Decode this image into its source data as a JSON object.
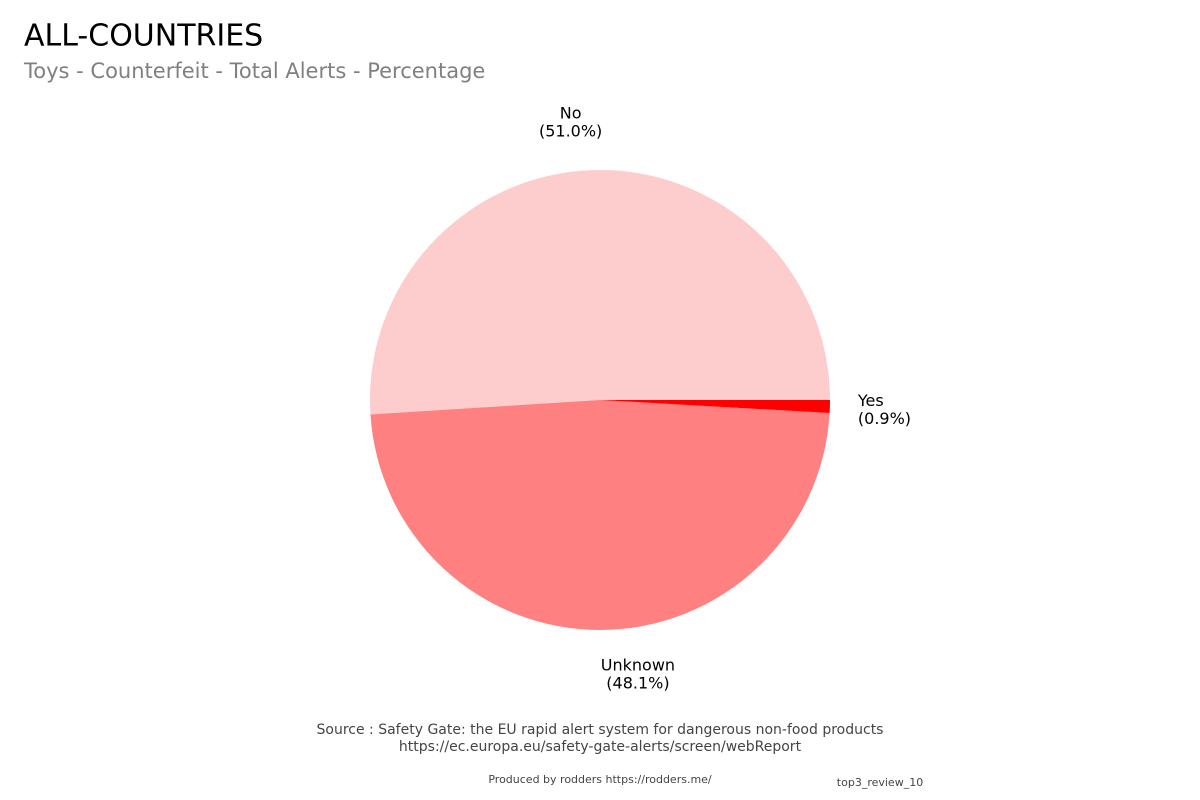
{
  "chart_data": {
    "type": "pie",
    "title": "ALL-COUNTRIES",
    "subtitle": "Toys - Counterfeit - Total Alerts - Percentage",
    "categories": [
      "No",
      "Unknown",
      "Yes"
    ],
    "values": [
      51.0,
      48.1,
      0.9
    ],
    "value_labels": [
      "(51.0%)",
      "(48.1%)",
      "(0.9%)"
    ],
    "colors": [
      "#fdcccc",
      "#ff8080",
      "#ff0000"
    ],
    "source": [
      "Source : Safety Gate: the EU rapid alert system for dangerous non-food products",
      "https://ec.europa.eu/safety-gate-alerts/screen/webReport"
    ],
    "credit": "Produced by rodders https://rodders.me/",
    "tag": "top3_review_10"
  }
}
